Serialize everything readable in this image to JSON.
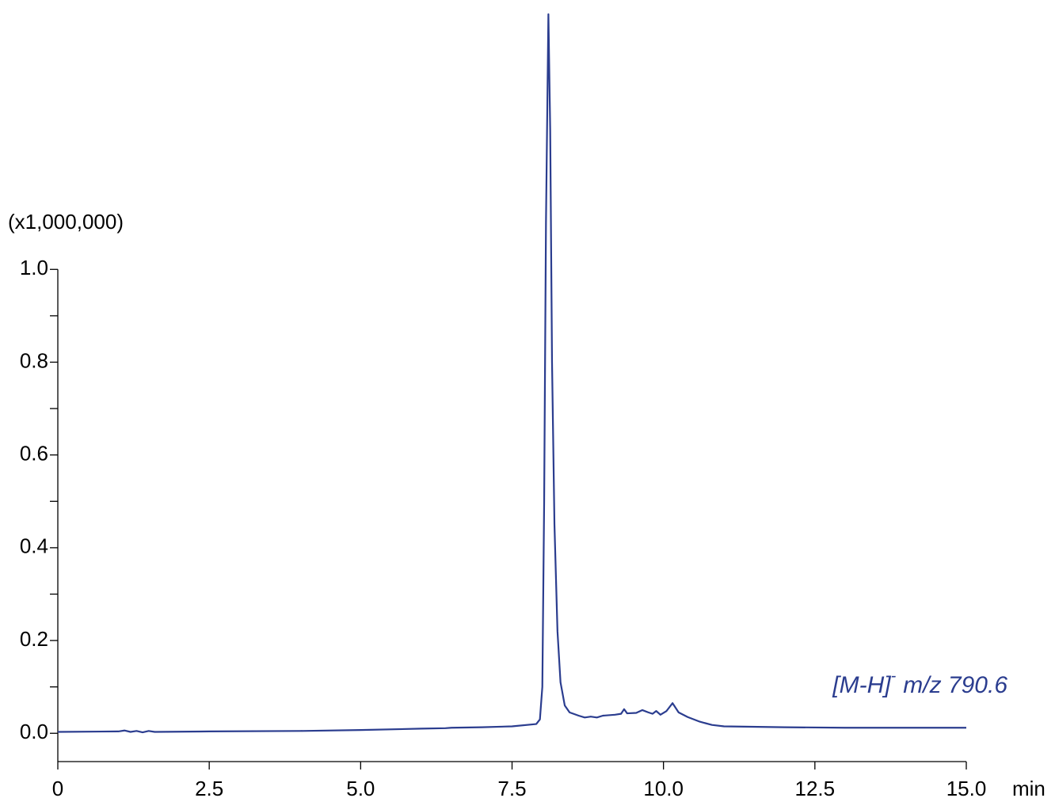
{
  "chart_data": {
    "type": "line",
    "y_axis_label": "(x1,000,000)",
    "x_axis_label": "min",
    "annotation": {
      "text": "[M-H]",
      "superscript": "-",
      "text_after": "m/z 790.6"
    },
    "x": [
      0,
      1.0,
      1.1,
      1.2,
      1.3,
      1.4,
      1.5,
      1.6,
      2.5,
      4.0,
      5.0,
      6.0,
      6.4,
      6.5,
      7.0,
      7.5,
      7.9,
      7.96,
      8.0,
      8.03,
      8.06,
      8.1,
      8.13,
      8.16,
      8.2,
      8.25,
      8.3,
      8.37,
      8.45,
      8.6,
      8.7,
      8.8,
      8.9,
      9.0,
      9.2,
      9.3,
      9.35,
      9.4,
      9.55,
      9.65,
      9.75,
      9.82,
      9.88,
      9.95,
      10.05,
      10.15,
      10.25,
      10.4,
      10.6,
      10.8,
      11.0,
      12.0,
      13.0,
      14.0,
      15.0
    ],
    "series": [
      {
        "color": "#2b3d8f",
        "values": [
          0.003,
          0.004,
          0.006,
          0.003,
          0.005,
          0.002,
          0.005,
          0.003,
          0.004,
          0.005,
          0.007,
          0.01,
          0.011,
          0.012,
          0.013,
          0.015,
          0.02,
          0.03,
          0.1,
          0.5,
          1.1,
          1.55,
          1.3,
          0.8,
          0.45,
          0.22,
          0.11,
          0.06,
          0.045,
          0.038,
          0.034,
          0.036,
          0.034,
          0.038,
          0.04,
          0.042,
          0.052,
          0.043,
          0.044,
          0.05,
          0.045,
          0.042,
          0.048,
          0.04,
          0.048,
          0.065,
          0.045,
          0.035,
          0.025,
          0.018,
          0.015,
          0.013,
          0.012,
          0.012,
          0.012
        ]
      }
    ],
    "xlim": [
      0,
      15
    ],
    "ylim": [
      -0.061,
      1.55
    ],
    "xticks": [
      0,
      2.5,
      {
        "value": 5,
        "label": "5.0"
      },
      7.5,
      {
        "value": 10,
        "label": "10.0"
      },
      12.5,
      {
        "value": 15,
        "label": "15.0"
      }
    ],
    "yticks": [
      {
        "value": 0,
        "label": "0.0"
      },
      0.2,
      0.4,
      0.6,
      0.8,
      {
        "value": 1,
        "label": "1.0"
      }
    ],
    "yminor_ticks": [
      0.1,
      0.3,
      0.5,
      0.7,
      0.9
    ]
  }
}
